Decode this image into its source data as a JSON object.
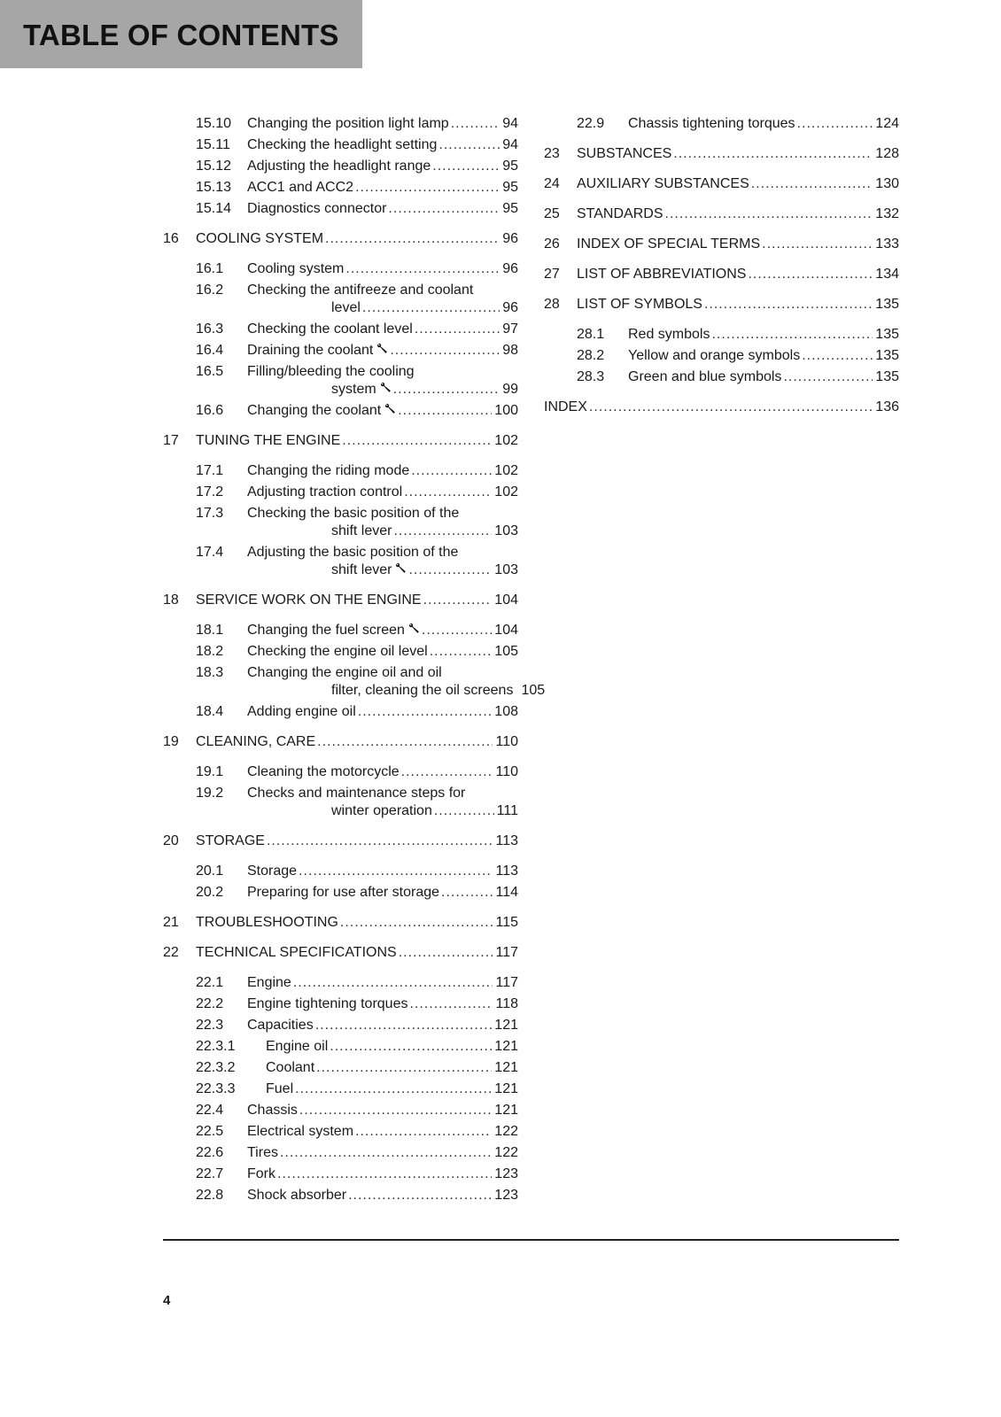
{
  "header": {
    "title": "TABLE OF CONTENTS"
  },
  "footer": {
    "page_number": "4"
  },
  "columns": [
    {
      "entries": [
        {
          "level": "section",
          "num": "15.10",
          "lines": [
            "Changing the position light lamp"
          ],
          "page": "94"
        },
        {
          "level": "section",
          "num": "15.11",
          "lines": [
            "Checking the headlight setting"
          ],
          "page": "94"
        },
        {
          "level": "section",
          "num": "15.12",
          "lines": [
            "Adjusting the headlight range"
          ],
          "page": "95"
        },
        {
          "level": "section",
          "num": "15.13",
          "lines": [
            "ACC1 and ACC2"
          ],
          "page": "95"
        },
        {
          "level": "section",
          "num": "15.14",
          "lines": [
            "Diagnostics connector"
          ],
          "page": "95"
        },
        {
          "level": "chapter",
          "num": "16",
          "lines": [
            "COOLING SYSTEM"
          ],
          "page": "96"
        },
        {
          "level": "section",
          "num": "16.1",
          "lines": [
            "Cooling system"
          ],
          "page": "96"
        },
        {
          "level": "section",
          "num": "16.2",
          "lines": [
            "Checking the antifreeze and coolant",
            "level"
          ],
          "page": "96"
        },
        {
          "level": "section",
          "num": "16.3",
          "lines": [
            "Checking the coolant level"
          ],
          "page": "97"
        },
        {
          "level": "section",
          "num": "16.4",
          "lines": [
            "Draining the coolant"
          ],
          "page": "98",
          "icon": "wrench-icon"
        },
        {
          "level": "section",
          "num": "16.5",
          "lines": [
            "Filling/bleeding the cooling",
            "system"
          ],
          "page": "99",
          "icon": "wrench-icon"
        },
        {
          "level": "section",
          "num": "16.6",
          "lines": [
            "Changing the coolant"
          ],
          "page": "100",
          "icon": "wrench-icon"
        },
        {
          "level": "chapter",
          "num": "17",
          "lines": [
            "TUNING THE ENGINE"
          ],
          "page": "102"
        },
        {
          "level": "section",
          "num": "17.1",
          "lines": [
            "Changing the riding mode"
          ],
          "page": "102"
        },
        {
          "level": "section",
          "num": "17.2",
          "lines": [
            "Adjusting traction control"
          ],
          "page": "102"
        },
        {
          "level": "section",
          "num": "17.3",
          "lines": [
            "Checking the basic position of the",
            "shift lever"
          ],
          "page": "103"
        },
        {
          "level": "section",
          "num": "17.4",
          "lines": [
            "Adjusting the basic position of the",
            "shift lever"
          ],
          "page": "103",
          "icon": "wrench-icon"
        },
        {
          "level": "chapter",
          "num": "18",
          "lines": [
            "SERVICE WORK ON THE ENGINE"
          ],
          "page": "104"
        },
        {
          "level": "section",
          "num": "18.1",
          "lines": [
            "Changing the fuel screen"
          ],
          "page": "104",
          "icon": "wrench-icon"
        },
        {
          "level": "section",
          "num": "18.2",
          "lines": [
            "Checking the engine oil level"
          ],
          "page": "105"
        },
        {
          "level": "section",
          "num": "18.3",
          "lines": [
            "Changing the engine oil and oil",
            "filter, cleaning the oil screens"
          ],
          "page": "105",
          "icon": "wrench-icon"
        },
        {
          "level": "section",
          "num": "18.4",
          "lines": [
            "Adding engine oil"
          ],
          "page": "108"
        },
        {
          "level": "chapter",
          "num": "19",
          "lines": [
            "CLEANING, CARE"
          ],
          "page": "110"
        },
        {
          "level": "section",
          "num": "19.1",
          "lines": [
            "Cleaning the motorcycle"
          ],
          "page": "110"
        },
        {
          "level": "section",
          "num": "19.2",
          "lines": [
            "Checks and maintenance steps for",
            "winter operation"
          ],
          "page": "111"
        },
        {
          "level": "chapter",
          "num": "20",
          "lines": [
            "STORAGE"
          ],
          "page": "113"
        },
        {
          "level": "section",
          "num": "20.1",
          "lines": [
            "Storage"
          ],
          "page": "113"
        },
        {
          "level": "section",
          "num": "20.2",
          "lines": [
            "Preparing for use after storage"
          ],
          "page": "114"
        },
        {
          "level": "chapter",
          "num": "21",
          "lines": [
            "TROUBLESHOOTING"
          ],
          "page": "115"
        },
        {
          "level": "chapter",
          "num": "22",
          "lines": [
            "TECHNICAL SPECIFICATIONS"
          ],
          "page": "117"
        },
        {
          "level": "section",
          "num": "22.1",
          "lines": [
            "Engine"
          ],
          "page": "117"
        },
        {
          "level": "section",
          "num": "22.2",
          "lines": [
            "Engine tightening torques"
          ],
          "page": "118"
        },
        {
          "level": "section",
          "num": "22.3",
          "lines": [
            "Capacities"
          ],
          "page": "121"
        },
        {
          "level": "subsection",
          "num": "22.3.1",
          "lines": [
            "Engine oil"
          ],
          "page": "121"
        },
        {
          "level": "subsection",
          "num": "22.3.2",
          "lines": [
            "Coolant"
          ],
          "page": "121"
        },
        {
          "level": "subsection",
          "num": "22.3.3",
          "lines": [
            "Fuel"
          ],
          "page": "121"
        },
        {
          "level": "section",
          "num": "22.4",
          "lines": [
            "Chassis"
          ],
          "page": "121"
        },
        {
          "level": "section",
          "num": "22.5",
          "lines": [
            "Electrical system"
          ],
          "page": "122"
        },
        {
          "level": "section",
          "num": "22.6",
          "lines": [
            "Tires"
          ],
          "page": "122"
        },
        {
          "level": "section",
          "num": "22.7",
          "lines": [
            "Fork"
          ],
          "page": "123"
        },
        {
          "level": "section",
          "num": "22.8",
          "lines": [
            "Shock absorber"
          ],
          "page": "123"
        }
      ]
    },
    {
      "entries": [
        {
          "level": "section",
          "num": "22.9",
          "lines": [
            "Chassis tightening torques"
          ],
          "page": "124"
        },
        {
          "level": "chapter",
          "num": "23",
          "lines": [
            "SUBSTANCES"
          ],
          "page": "128"
        },
        {
          "level": "chapter",
          "num": "24",
          "lines": [
            "AUXILIARY SUBSTANCES"
          ],
          "page": "130"
        },
        {
          "level": "chapter",
          "num": "25",
          "lines": [
            "STANDARDS"
          ],
          "page": "132"
        },
        {
          "level": "chapter",
          "num": "26",
          "lines": [
            "INDEX OF SPECIAL TERMS"
          ],
          "page": "133"
        },
        {
          "level": "chapter",
          "num": "27",
          "lines": [
            "LIST OF ABBREVIATIONS"
          ],
          "page": "134"
        },
        {
          "level": "chapter",
          "num": "28",
          "lines": [
            "LIST OF SYMBOLS"
          ],
          "page": "135"
        },
        {
          "level": "section",
          "num": "28.1",
          "lines": [
            "Red symbols"
          ],
          "page": "135"
        },
        {
          "level": "section",
          "num": "28.2",
          "lines": [
            "Yellow and orange symbols"
          ],
          "page": "135"
        },
        {
          "level": "section",
          "num": "28.3",
          "lines": [
            "Green and blue symbols"
          ],
          "page": "135"
        },
        {
          "level": "index",
          "num": "",
          "lines": [
            "INDEX"
          ],
          "page": "136"
        }
      ]
    }
  ]
}
